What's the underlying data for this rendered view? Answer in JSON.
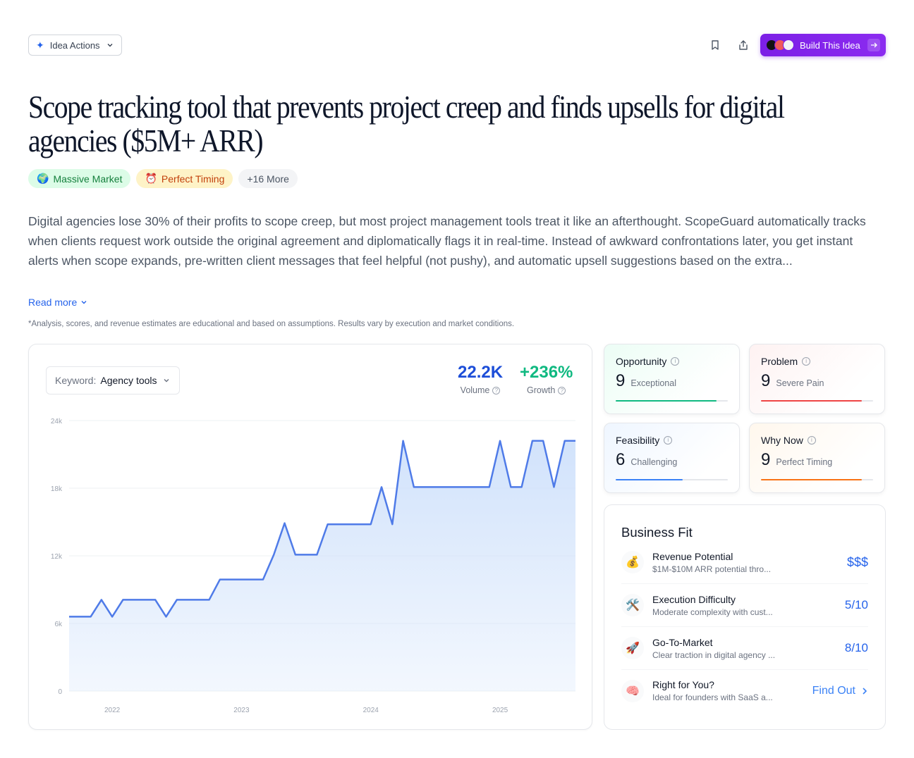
{
  "header": {
    "idea_actions_label": "Idea Actions",
    "build_label": "Build This Idea"
  },
  "title": "Scope tracking tool that prevents project creep and finds upsells for digital agencies ($5M+ ARR)",
  "tags": [
    {
      "emoji": "🌍",
      "label": "Massive Market"
    },
    {
      "emoji": "⏰",
      "label": "Perfect Timing"
    },
    {
      "label": "+16 More"
    }
  ],
  "description": "Digital agencies lose 30% of their profits to scope creep, but most project management tools treat it like an afterthought. ScopeGuard automatically tracks when clients request work outside the original agreement and diplomatically flags it in real-time. Instead of awkward confrontations later, you get instant alerts when scope expands, pre-written client messages that feel helpful (not pushy), and automatic upsell suggestions based on the extra...",
  "read_more": "Read more",
  "disclaimer": "*Analysis, scores, and revenue estimates are educational and based on assumptions. Results vary by execution and market conditions.",
  "keyword": {
    "label": "Keyword:",
    "value": "Agency tools"
  },
  "stats": {
    "volume": {
      "value": "22.2K",
      "label": "Volume",
      "color": "#1d4ed8"
    },
    "growth": {
      "value": "+236%",
      "label": "Growth",
      "color": "#10b981"
    }
  },
  "chart_data": {
    "type": "area",
    "y_tick_labels": [
      "0",
      "6k",
      "12k",
      "18k",
      "24k"
    ],
    "y_ticks": [
      0,
      6000,
      12000,
      18000,
      24000
    ],
    "ylim": [
      0,
      24000
    ],
    "x_tick_labels": [
      "2022",
      "2023",
      "2024",
      "2025"
    ],
    "x_tick_index": [
      4,
      16,
      28,
      40
    ],
    "values": [
      6600,
      6600,
      6600,
      8100,
      6600,
      8100,
      8100,
      8100,
      8100,
      6600,
      8100,
      8100,
      8100,
      8100,
      9900,
      9900,
      9900,
      9900,
      9900,
      12100,
      14900,
      12100,
      12100,
      12100,
      14800,
      14800,
      14800,
      14800,
      14800,
      18100,
      14800,
      22200,
      18100,
      18100,
      18100,
      18100,
      18100,
      18100,
      18100,
      18100,
      22200,
      18100,
      18100,
      22200,
      22200,
      18100,
      22200,
      22200
    ],
    "line_color": "#4f7be8",
    "fill_color": "#cfe1fb"
  },
  "scores": [
    {
      "name": "Opportunity",
      "value": "9",
      "desc": "Exceptional",
      "fraction": 0.9,
      "color": "#10b981"
    },
    {
      "name": "Problem",
      "value": "9",
      "desc": "Severe Pain",
      "fraction": 0.9,
      "color": "#ef4444"
    },
    {
      "name": "Feasibility",
      "value": "6",
      "desc": "Challenging",
      "fraction": 0.6,
      "color": "#3b82f6"
    },
    {
      "name": "Why Now",
      "value": "9",
      "desc": "Perfect Timing",
      "fraction": 0.9,
      "color": "#f97316"
    }
  ],
  "business_fit": {
    "title": "Business Fit",
    "rows": [
      {
        "icon": "💰",
        "name": "Revenue Potential",
        "sub": "$1M-$10M ARR potential thro...",
        "value": "$$$"
      },
      {
        "icon": "🛠️",
        "name": "Execution Difficulty",
        "sub": "Moderate complexity with cust...",
        "value": "5/10"
      },
      {
        "icon": "🚀",
        "name": "Go-To-Market",
        "sub": "Clear traction in digital agency ...",
        "value": "8/10"
      },
      {
        "icon": "🧠",
        "name": "Right for You?",
        "sub": "Ideal for founders with SaaS a...",
        "value": "Find Out"
      }
    ]
  }
}
